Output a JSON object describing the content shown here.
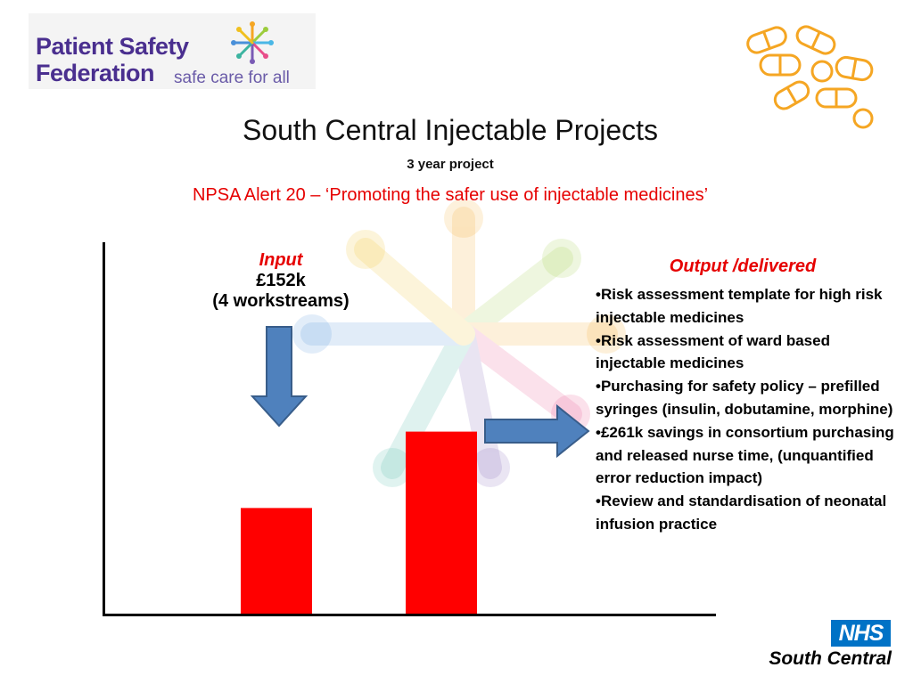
{
  "logo": {
    "line1": "Patient Safety",
    "line2": "Federation",
    "tagline": "safe care for all"
  },
  "title": "South Central Injectable Projects",
  "subtitle": "3 year project",
  "alert": "NPSA  Alert 20 – ‘Promoting the safer use of injectable medicines’",
  "input": {
    "label": "Input",
    "amount": "£152k",
    "workstreams": "(4 workstreams)"
  },
  "output": {
    "label": "Output /delivered",
    "items": [
      "•Risk assessment template for high risk injectable medicines",
      "•Risk assessment of ward based injectable medicines",
      "•Purchasing for safety policy – prefilled syringes (insulin, dobutamine, morphine)",
      "•£261k  savings in consortium purchasing and released nurse time, (unquantified error reduction impact)",
      "•Review  and standardisation of neonatal infusion practice"
    ]
  },
  "chart_data": {
    "type": "bar",
    "categories": [
      "Input",
      "Output"
    ],
    "values": [
      152,
      261
    ],
    "ylim": [
      0,
      413
    ],
    "bar_color": "#ff0000",
    "arrow_color": "#4f81bd"
  },
  "nhs": {
    "logo_text": "NHS",
    "region": "South Central"
  },
  "colors": {
    "accent_red": "#e60000",
    "brand_purple": "#4a2f8f",
    "nhs_blue": "#0072c6",
    "pill_orange": "#f5a623"
  }
}
